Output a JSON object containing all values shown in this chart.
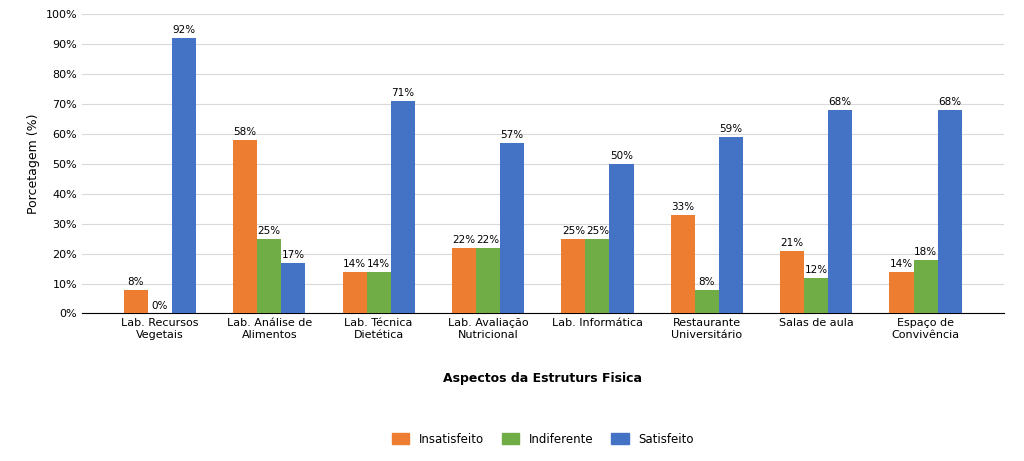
{
  "categories": [
    "Lab. Recursos\nVegetais",
    "Lab. Análise de\nAlimentos",
    "Lab. Técnica\nDietética",
    "Lab. Avaliação\nNutricional",
    "Lab. Informática",
    "Restaurante\nUniversitário",
    "Salas de aula",
    "Espaço de\nConvivência"
  ],
  "insatisfeito": [
    8,
    58,
    14,
    22,
    25,
    33,
    21,
    14
  ],
  "indiferente": [
    0,
    25,
    14,
    22,
    25,
    8,
    12,
    18
  ],
  "satisfeito": [
    92,
    17,
    71,
    57,
    50,
    59,
    68,
    68
  ],
  "color_insatisfeito": "#ED7D31",
  "color_indiferente": "#70AD47",
  "color_satisfeito": "#4472C4",
  "ylabel": "Porcetagem (%)",
  "xlabel": "Aspectos da Estruturs Fisica",
  "ylim": [
    0,
    100
  ],
  "yticks": [
    0,
    10,
    20,
    30,
    40,
    50,
    60,
    70,
    80,
    90,
    100
  ],
  "ytick_labels": [
    "0%",
    "10%",
    "20%",
    "30%",
    "40%",
    "50%",
    "60%",
    "70%",
    "80%",
    "90%",
    "100%"
  ],
  "legend_labels": [
    "Insatisfeito",
    "Indiferente",
    "Satisfeito"
  ],
  "bar_width": 0.22,
  "label_fontsize": 7.5,
  "tick_fontsize": 8,
  "axis_label_fontsize": 9,
  "legend_fontsize": 8.5,
  "bg_color": "#FFFFFF",
  "grid_color": "#D9D9D9"
}
